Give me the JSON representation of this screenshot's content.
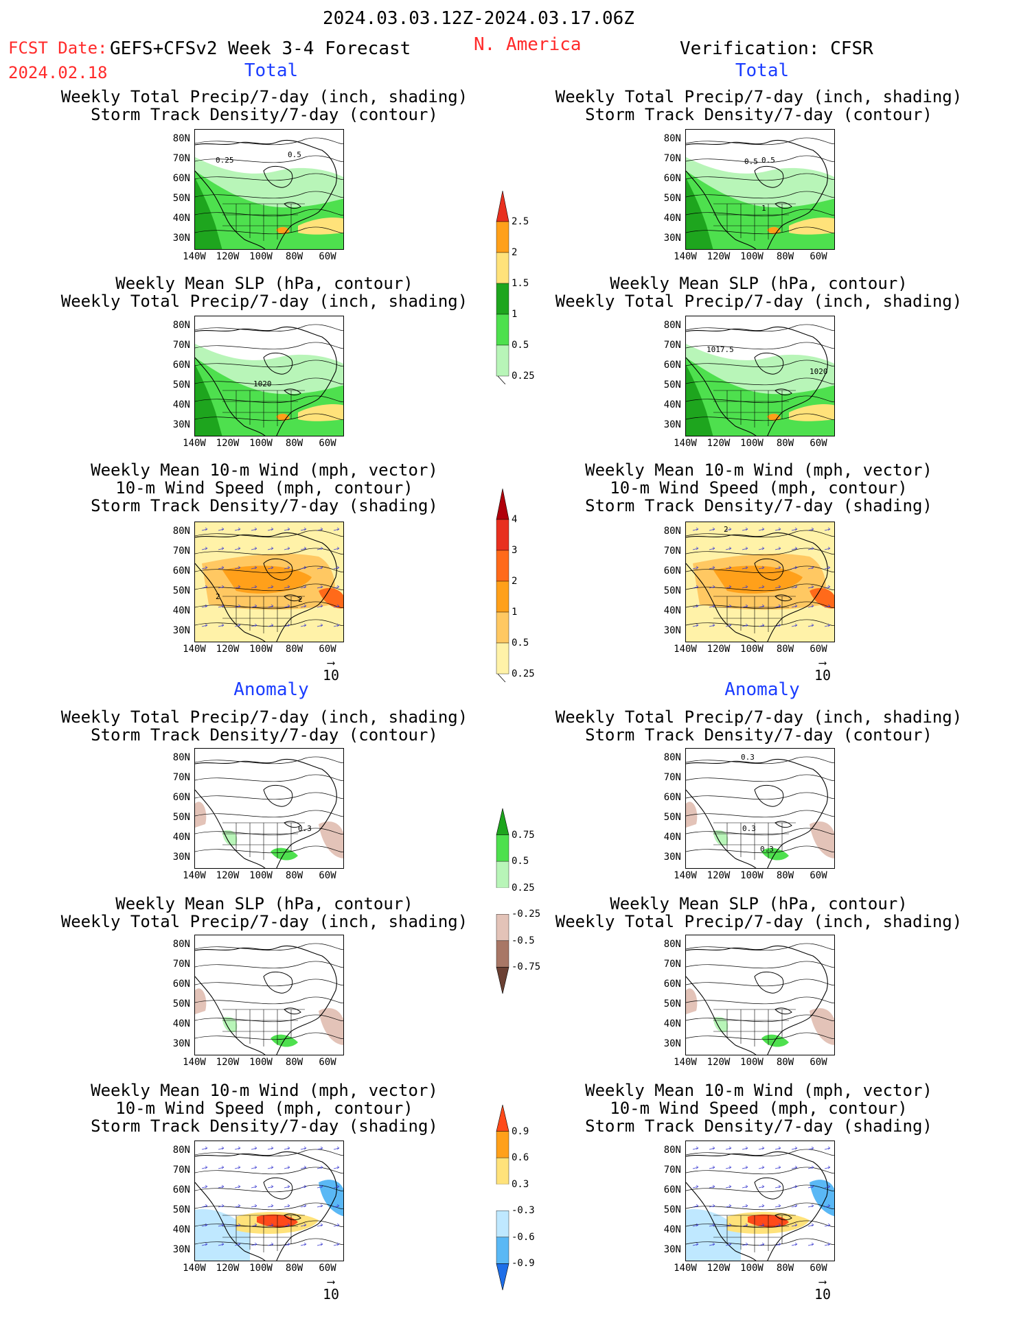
{
  "header": {
    "date_range": "2024.03.03.12Z-2024.03.17.06Z",
    "fcst_label": "FCST Date:",
    "forecast_title": "GEFS+CFSv2 Week 3-4 Forecast",
    "region": "N. America",
    "verification": "Verification: CFSR",
    "fcst_date": "2024.02.18"
  },
  "sections": {
    "total": "Total",
    "anomaly": "Anomaly"
  },
  "titles": {
    "precip_storm": [
      "Weekly Total Precip/7-day (inch, shading)",
      "Storm Track Density/7-day (contour)"
    ],
    "slp_precip": [
      "Weekly Mean SLP (hPa, contour)",
      "Weekly Total Precip/7-day (inch, shading)"
    ],
    "wind_storm": [
      "Weekly Mean 10-m Wind (mph, vector)",
      "10-m Wind Speed (mph, contour)",
      "Storm Track Density/7-day (shading)"
    ]
  },
  "axes": {
    "lat_ticks": [
      "80N",
      "70N",
      "60N",
      "50N",
      "40N",
      "30N"
    ],
    "lon_ticks": [
      "140W",
      "120W",
      "100W",
      "80W",
      "60W"
    ]
  },
  "vector_ref": "10",
  "map_labels": {
    "l1": [
      "0.25",
      "0.5"
    ],
    "r1": [
      "0.5",
      "0.5",
      "1"
    ],
    "l2": [
      "1020"
    ],
    "r2": [
      "1017.5",
      "1020"
    ],
    "l3": [
      "2",
      "2"
    ],
    "r3": [
      "2"
    ],
    "l4": [
      "0.3"
    ],
    "r4": [
      "0.3",
      "0.3",
      "0.3"
    ]
  },
  "colorbars": {
    "precip_total": {
      "labels": [
        "2.5",
        "2",
        "1.5",
        "1",
        "0.5",
        "0.25"
      ],
      "colors": [
        "#e8301f",
        "#ffa01a",
        "#ffe27a",
        "#1ea51e",
        "#4ee04e",
        "#b8f5b8"
      ]
    },
    "storm_total": {
      "labels": [
        "4",
        "3",
        "2",
        "1",
        "0.5",
        "0.25"
      ],
      "colors": [
        "#b0000a",
        "#e8301f",
        "#ff6a1a",
        "#ffa01a",
        "#ffc862",
        "#fff2a8"
      ]
    },
    "precip_anom": {
      "labels": [
        "0.75",
        "0.5",
        "0.25",
        "-0.25",
        "-0.5",
        "-0.75"
      ],
      "colors": [
        "#1ea51e",
        "#4ee04e",
        "#b8f5b8",
        "#ffffff",
        "#e3c3b8",
        "#a87766",
        "#6b4033"
      ]
    },
    "storm_anom": {
      "labels": [
        "0.9",
        "0.6",
        "0.3",
        "-0.3",
        "-0.6",
        "-0.9"
      ],
      "colors": [
        "#ff4a1a",
        "#ffa01a",
        "#ffe27a",
        "#ffffff",
        "#bfe8ff",
        "#5ab8f5",
        "#1e6ee8"
      ]
    }
  },
  "colors": {
    "fcst_red": "#ff2a2a",
    "section_blue": "#1a3cff"
  }
}
